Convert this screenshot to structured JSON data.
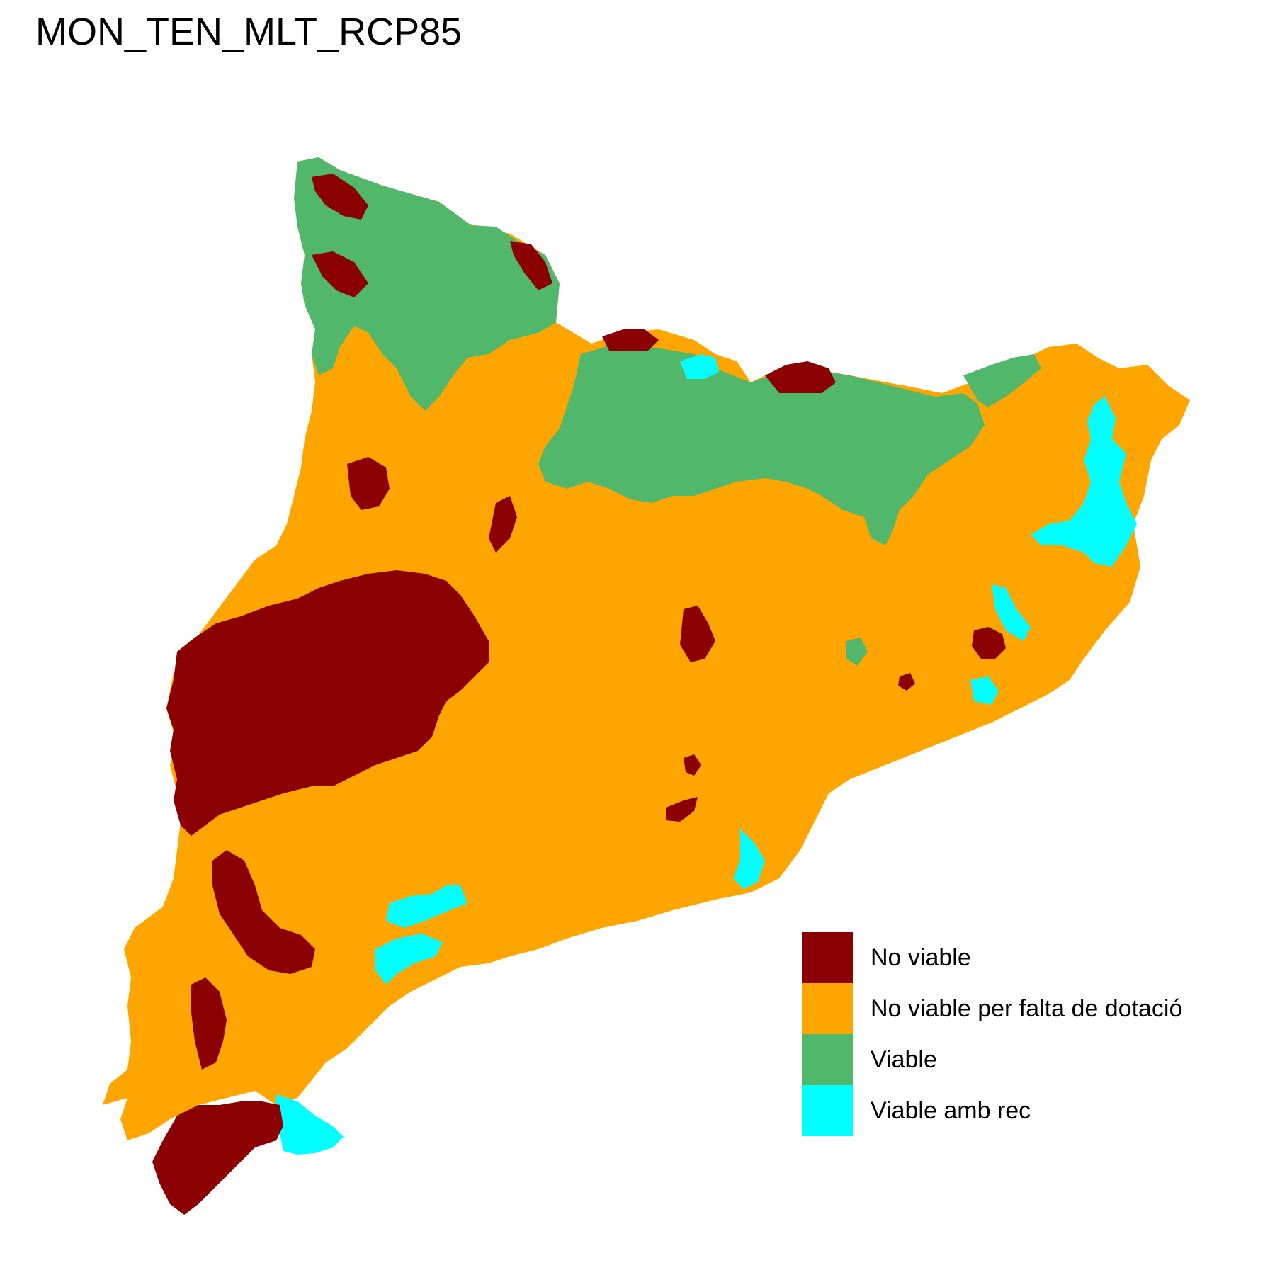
{
  "title": "MON_TEN_MLT_RCP85",
  "legend": [
    {
      "label": "No viable",
      "color": "#8B0000"
    },
    {
      "label": "No viable per falta de dotació",
      "color": "#FFA500"
    },
    {
      "label": "Viable",
      "color": "#51B76B"
    },
    {
      "label": "Viable amb rec",
      "color": "#00FFFF"
    }
  ]
}
